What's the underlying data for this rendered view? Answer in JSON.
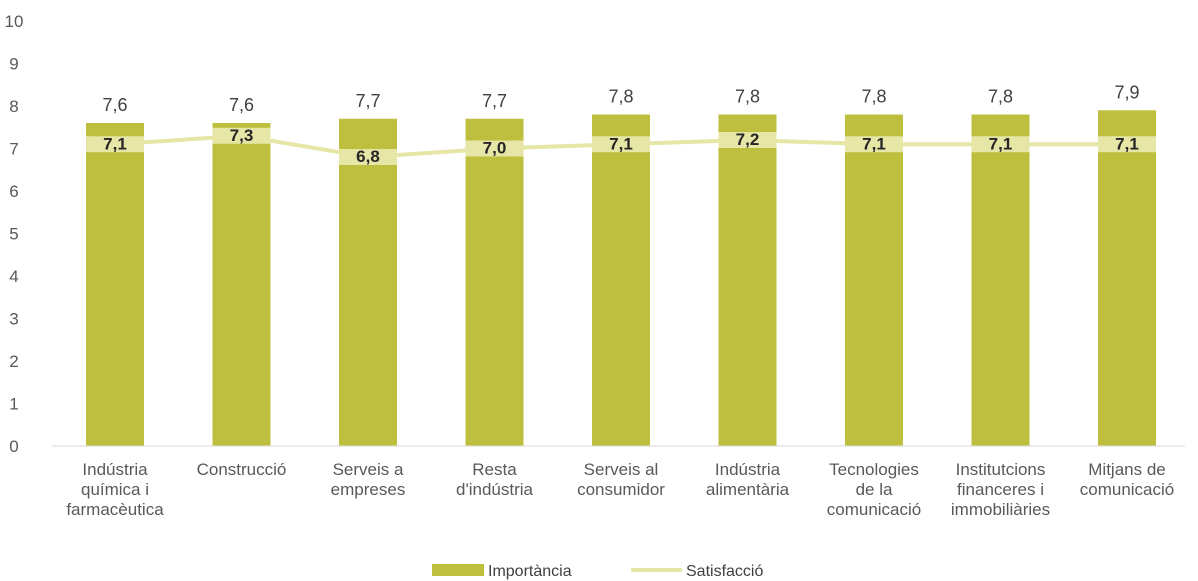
{
  "chart_data": {
    "type": "bar",
    "categories": [
      [
        "Indústria",
        "química i",
        "farmacèutica"
      ],
      [
        "Construcció"
      ],
      [
        "Serveis a",
        "empreses"
      ],
      [
        "Resta",
        "d'indústria"
      ],
      [
        "Serveis al",
        "consumidor"
      ],
      [
        "Indústria",
        "alimentària"
      ],
      [
        "Tecnologies",
        "de la",
        "comunicació"
      ],
      [
        "Institutcions",
        "financeres i",
        "immobiliàries"
      ],
      [
        "Mitjans de",
        "comunicació"
      ]
    ],
    "series": [
      {
        "name": "Importància",
        "kind": "bar",
        "color": "#bfbf3f",
        "values": [
          7.6,
          7.6,
          7.7,
          7.7,
          7.8,
          7.8,
          7.8,
          7.8,
          7.9
        ],
        "labels": [
          "7,6",
          "7,6",
          "7,7",
          "7,7",
          "7,8",
          "7,8",
          "7,8",
          "7,8",
          "7,9"
        ]
      },
      {
        "name": "Satisfacció",
        "kind": "line",
        "color": "#e6e6a6",
        "values": [
          7.1,
          7.3,
          6.8,
          7.0,
          7.1,
          7.2,
          7.1,
          7.1,
          7.1
        ],
        "labels": [
          "7,1",
          "7,3",
          "6,8",
          "7,0",
          "7,1",
          "7,2",
          "7,1",
          "7,1",
          "7,1"
        ]
      }
    ],
    "ylim": [
      0,
      10
    ],
    "yticks": [
      "0",
      "1",
      "2",
      "3",
      "4",
      "5",
      "6",
      "7",
      "8",
      "9",
      "10"
    ],
    "grid": false,
    "legend": "bottom"
  }
}
